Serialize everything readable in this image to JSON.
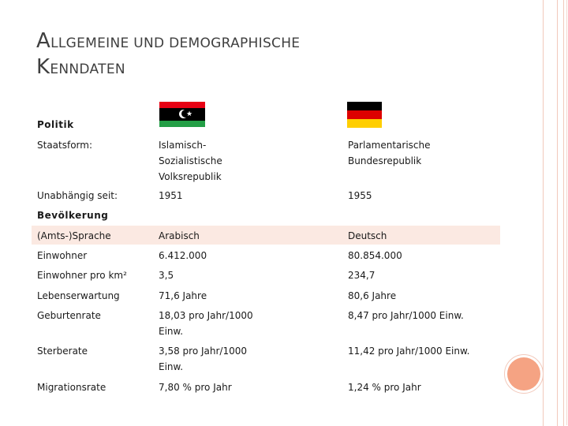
{
  "title": {
    "line1_initial": "A",
    "line1_rest": "LLGEMEINE UND DEMOGRAPHISCHE",
    "line2_initial": "K",
    "line2_rest": "ENNDATEN"
  },
  "politik": {
    "heading": "Politik",
    "rows": [
      {
        "label": "Staatsform:",
        "libya": [
          "Islamisch-",
          "Sozialistische",
          "Volksrepublik"
        ],
        "germany": [
          "Parlamentarische",
          "Bundesrepublik"
        ]
      },
      {
        "label": "Unabhängig seit:",
        "libya": [
          "1951"
        ],
        "germany": [
          "1955"
        ]
      }
    ]
  },
  "bevoelkerung": {
    "heading": "Bevölkerung",
    "rows": [
      {
        "label": "(Amts-)Sprache",
        "libya": [
          "Arabisch"
        ],
        "germany": [
          "Deutsch"
        ]
      },
      {
        "label": "Einwohner",
        "libya": [
          "6.412.000"
        ],
        "germany": [
          "80.854.000"
        ]
      },
      {
        "label": "Einwohner pro km²",
        "libya": [
          "3,5"
        ],
        "germany": [
          "234,7"
        ]
      },
      {
        "label": "Lebenserwartung",
        "libya": [
          "71,6 Jahre"
        ],
        "germany": [
          "80,6 Jahre"
        ]
      },
      {
        "label": "Geburtenrate",
        "libya": [
          "18,03 pro Jahr/1000",
          "Einw."
        ],
        "germany": [
          "8,47 pro Jahr/1000 Einw."
        ]
      },
      {
        "label": "Sterberate",
        "libya": [
          "3,58 pro Jahr/1000",
          "Einw."
        ],
        "germany": [
          "11,42 pro Jahr/1000 Einw."
        ]
      },
      {
        "label": "Migrationsrate",
        "libya": [
          "7,80 % pro Jahr"
        ],
        "germany": [
          "1,24 % pro Jahr"
        ]
      }
    ]
  },
  "flags": {
    "libya": "flag-of-libya",
    "germany": "flag-of-germany"
  },
  "colors": {
    "accent": "#f5a383",
    "row_highlight": "#fbe9e2"
  }
}
